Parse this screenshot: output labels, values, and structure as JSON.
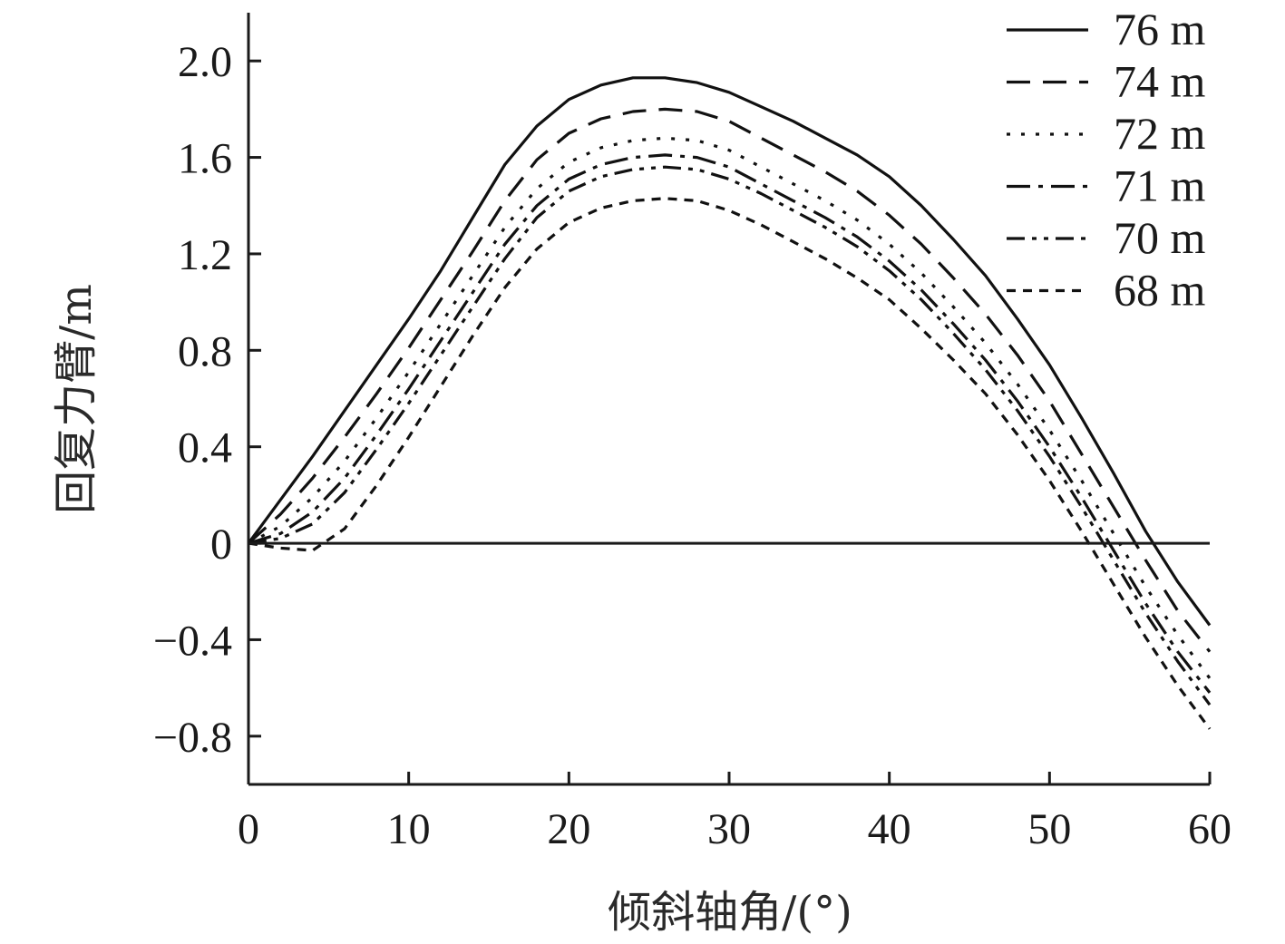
{
  "chart_data": {
    "type": "line",
    "xlabel": "倾斜轴角/(°)",
    "ylabel": "回复力臂/m",
    "xlim": [
      0,
      60
    ],
    "ylim": [
      -1.0,
      2.2
    ],
    "x_ticks": [
      0,
      10,
      20,
      30,
      40,
      50,
      60
    ],
    "x_tick_labels": [
      "0",
      "10",
      "20",
      "30",
      "40",
      "50",
      "60"
    ],
    "y_ticks": [
      2.0,
      1.6,
      1.2,
      0.8,
      0.4,
      0,
      -0.4,
      -0.8
    ],
    "y_tick_labels": [
      "2.0",
      "1.6",
      "1.2",
      "0.8",
      "0.4",
      "0",
      "−0.4",
      "−0.8"
    ],
    "grid": false,
    "legend_position": "top-right",
    "zero_line": true,
    "x": [
      0,
      2,
      4,
      6,
      8,
      10,
      12,
      14,
      16,
      18,
      20,
      22,
      24,
      26,
      28,
      30,
      32,
      34,
      36,
      38,
      40,
      42,
      44,
      46,
      48,
      50,
      52,
      54,
      56,
      58,
      60
    ],
    "series": [
      {
        "name": "76 m",
        "line_style": "solid",
        "values": [
          0.0,
          0.18,
          0.36,
          0.55,
          0.74,
          0.93,
          1.13,
          1.35,
          1.57,
          1.73,
          1.84,
          1.9,
          1.93,
          1.93,
          1.91,
          1.87,
          1.81,
          1.75,
          1.68,
          1.61,
          1.52,
          1.4,
          1.26,
          1.11,
          0.93,
          0.74,
          0.52,
          0.29,
          0.05,
          -0.16,
          -0.34
        ]
      },
      {
        "name": "74 m",
        "line_style": "dashed",
        "values": [
          0.0,
          0.12,
          0.27,
          0.44,
          0.62,
          0.81,
          1.01,
          1.21,
          1.42,
          1.59,
          1.7,
          1.76,
          1.79,
          1.8,
          1.79,
          1.75,
          1.68,
          1.61,
          1.54,
          1.46,
          1.36,
          1.24,
          1.1,
          0.95,
          0.78,
          0.59,
          0.37,
          0.15,
          -0.07,
          -0.28,
          -0.45
        ]
      },
      {
        "name": "72 m",
        "line_style": "dotted",
        "values": [
          0.0,
          0.07,
          0.19,
          0.34,
          0.52,
          0.71,
          0.91,
          1.11,
          1.31,
          1.47,
          1.58,
          1.64,
          1.67,
          1.68,
          1.67,
          1.63,
          1.56,
          1.49,
          1.42,
          1.34,
          1.24,
          1.12,
          0.98,
          0.83,
          0.66,
          0.47,
          0.26,
          0.04,
          -0.18,
          -0.38,
          -0.56
        ]
      },
      {
        "name": "71 m",
        "line_style": "dashdot",
        "values": [
          0.0,
          0.04,
          0.13,
          0.27,
          0.45,
          0.64,
          0.84,
          1.04,
          1.24,
          1.4,
          1.51,
          1.57,
          1.6,
          1.61,
          1.6,
          1.56,
          1.49,
          1.42,
          1.35,
          1.27,
          1.17,
          1.05,
          0.91,
          0.76,
          0.59,
          0.4,
          0.19,
          -0.03,
          -0.25,
          -0.45,
          -0.62
        ]
      },
      {
        "name": "70 m",
        "line_style": "dashdotdot",
        "values": [
          0.0,
          0.02,
          0.08,
          0.21,
          0.39,
          0.58,
          0.78,
          0.98,
          1.18,
          1.35,
          1.46,
          1.52,
          1.55,
          1.56,
          1.55,
          1.51,
          1.45,
          1.38,
          1.31,
          1.23,
          1.13,
          1.01,
          0.87,
          0.72,
          0.55,
          0.36,
          0.15,
          -0.07,
          -0.29,
          -0.49,
          -0.67
        ]
      },
      {
        "name": "68 m",
        "line_style": "short-dashed",
        "values": [
          0.0,
          -0.02,
          -0.03,
          0.06,
          0.24,
          0.44,
          0.65,
          0.86,
          1.06,
          1.22,
          1.33,
          1.39,
          1.42,
          1.43,
          1.42,
          1.38,
          1.32,
          1.25,
          1.18,
          1.1,
          1.01,
          0.89,
          0.76,
          0.62,
          0.45,
          0.26,
          0.05,
          -0.17,
          -0.39,
          -0.59,
          -0.77
        ]
      }
    ]
  }
}
